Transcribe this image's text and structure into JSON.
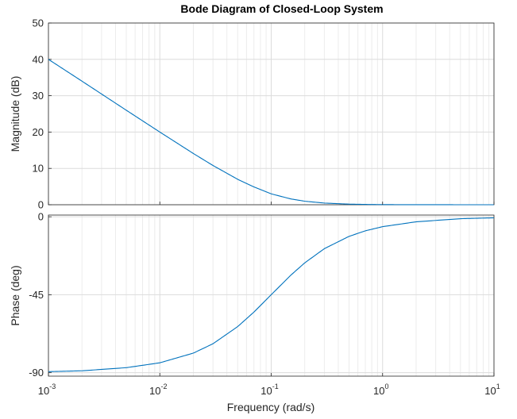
{
  "chart_data": {
    "type": "line",
    "title": "Bode Diagram of Closed-Loop System",
    "xlabel": "Frequency  (rad/s)",
    "x_scale": "log",
    "xlim": [
      0.001,
      10
    ],
    "x_ticks": [
      {
        "base": "10",
        "exp": "-3"
      },
      {
        "base": "10",
        "exp": "-2"
      },
      {
        "base": "10",
        "exp": "-1"
      },
      {
        "base": "10",
        "exp": "0"
      },
      {
        "base": "10",
        "exp": "1"
      }
    ],
    "grid": true,
    "color": "#0072BD",
    "panels": [
      {
        "ylabel": "Magnitude (dB)",
        "ylim": [
          0,
          50
        ],
        "y_ticks": [
          "0",
          "10",
          "20",
          "30",
          "40",
          "50"
        ],
        "series": [
          {
            "x": [
              0.001,
              0.002,
              0.005,
              0.01,
              0.02,
              0.03,
              0.05,
              0.07,
              0.1,
              0.15,
              0.2,
              0.3,
              0.5,
              0.7,
              1,
              2,
              5,
              10
            ],
            "y": [
              40.0,
              34.0,
              26.0,
              20.0,
              14.1,
              10.8,
              7.0,
              4.9,
              3.0,
              1.6,
              0.97,
              0.46,
              0.17,
              0.09,
              0.04,
              0.01,
              0.002,
              0.0004
            ]
          }
        ]
      },
      {
        "ylabel": "Phase (deg)",
        "ylim": [
          -92,
          1
        ],
        "y_ticks": [
          "0",
          "-45",
          "-90"
        ],
        "series": [
          {
            "x": [
              0.001,
              0.002,
              0.005,
              0.01,
              0.02,
              0.03,
              0.05,
              0.07,
              0.1,
              0.15,
              0.2,
              0.3,
              0.5,
              0.7,
              1,
              2,
              5,
              10
            ],
            "y": [
              -89.4,
              -88.9,
              -87.1,
              -84.3,
              -78.7,
              -73.3,
              -63.4,
              -55.0,
              -45.0,
              -33.7,
              -26.6,
              -18.4,
              -11.3,
              -8.1,
              -5.7,
              -2.9,
              -1.1,
              -0.6
            ]
          }
        ]
      }
    ]
  }
}
